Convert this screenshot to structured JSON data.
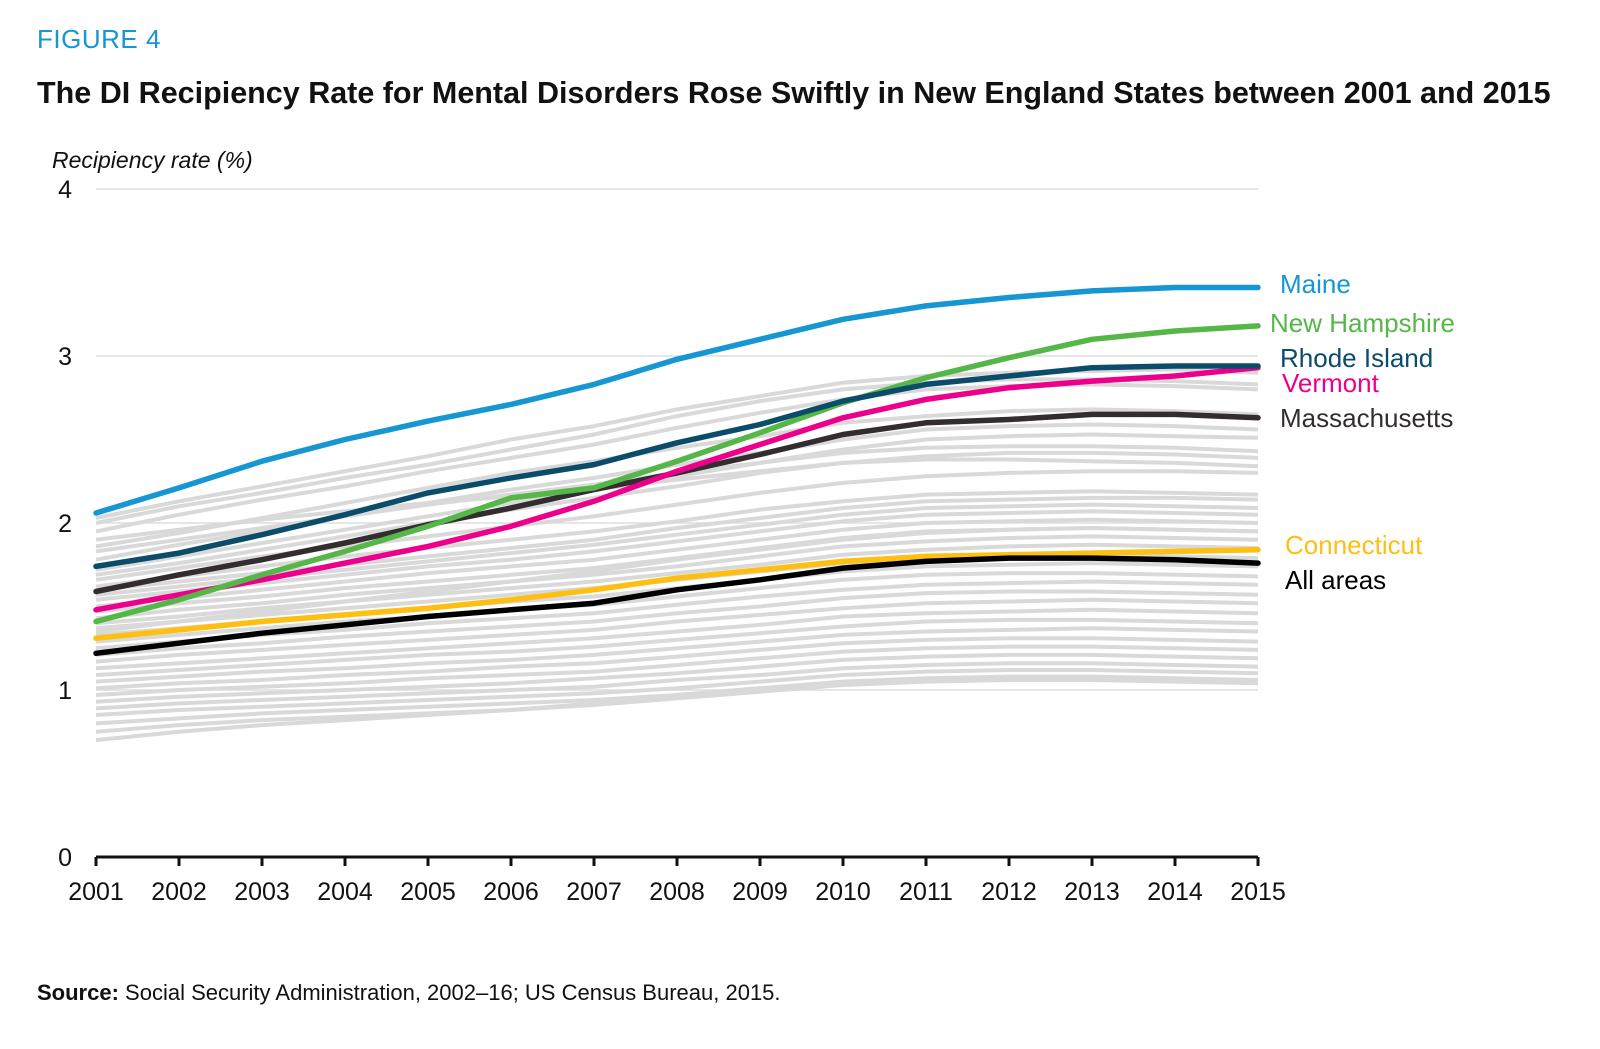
{
  "figure_label": "FIGURE 4",
  "title": "The DI Recipiency Rate for Mental Disorders Rose Swiftly in New England States between 2001 and 2015",
  "source": {
    "label": "Source:",
    "text": " Social Security Administration, 2002–16; US Census Bureau, 2015."
  },
  "colors": {
    "background_lines": "#d9d9d9",
    "gridline": "#dddddd",
    "axis": "#111111"
  },
  "chart_data": {
    "type": "line",
    "title": "The DI Recipiency Rate for Mental Disorders Rose Swiftly in New England States between 2001 and 2015",
    "ylabel": "Recipiency rate (%)",
    "xlabel": "",
    "x": [
      2001,
      2002,
      2003,
      2004,
      2005,
      2006,
      2007,
      2008,
      2009,
      2010,
      2011,
      2012,
      2013,
      2014,
      2015
    ],
    "ylim": [
      0,
      4
    ],
    "yticks": [
      0,
      1,
      2,
      3,
      4
    ],
    "grid": true,
    "series": [
      {
        "name": "Maine",
        "color": "#1696d2",
        "label_color": "#1696d2",
        "values": [
          2.06,
          2.21,
          2.37,
          2.5,
          2.61,
          2.71,
          2.83,
          2.98,
          3.1,
          3.22,
          3.3,
          3.35,
          3.39,
          3.41,
          3.41
        ]
      },
      {
        "name": "New Hampshire",
        "color": "#55b748",
        "label_color": "#55b748",
        "values": [
          1.41,
          1.54,
          1.69,
          1.83,
          1.98,
          2.15,
          2.21,
          2.37,
          2.54,
          2.72,
          2.87,
          2.99,
          3.1,
          3.15,
          3.18
        ]
      },
      {
        "name": "Rhode Island",
        "color": "#0a4c6a",
        "label_color": "#0a4c6a",
        "values": [
          1.74,
          1.82,
          1.93,
          2.05,
          2.18,
          2.27,
          2.35,
          2.48,
          2.59,
          2.73,
          2.83,
          2.88,
          2.93,
          2.94,
          2.94
        ]
      },
      {
        "name": "Vermont",
        "color": "#ec008b",
        "label_color": "#ec008b",
        "values": [
          1.48,
          1.57,
          1.66,
          1.76,
          1.86,
          1.98,
          2.13,
          2.31,
          2.47,
          2.63,
          2.74,
          2.81,
          2.85,
          2.88,
          2.93
        ]
      },
      {
        "name": "Massachusetts",
        "color": "#332d2f",
        "label_color": "#332d2f",
        "values": [
          1.59,
          1.69,
          1.78,
          1.88,
          1.99,
          2.09,
          2.2,
          2.3,
          2.41,
          2.53,
          2.6,
          2.62,
          2.65,
          2.65,
          2.63
        ]
      },
      {
        "name": "Connecticut",
        "color": "#fdbf11",
        "label_color": "#fdbf11",
        "values": [
          1.31,
          1.36,
          1.41,
          1.45,
          1.49,
          1.54,
          1.6,
          1.67,
          1.72,
          1.77,
          1.8,
          1.81,
          1.82,
          1.83,
          1.84
        ]
      },
      {
        "name": "All areas",
        "color": "#000000",
        "label_color": "#000000",
        "values": [
          1.22,
          1.28,
          1.34,
          1.39,
          1.44,
          1.48,
          1.52,
          1.6,
          1.66,
          1.73,
          1.77,
          1.79,
          1.79,
          1.78,
          1.76
        ]
      }
    ],
    "background_series_note": "Other areas shown as unlabeled gray lines",
    "background_series": [
      [
        2.03,
        2.13,
        2.22,
        2.31,
        2.4,
        2.5,
        2.58,
        2.68,
        2.76,
        2.84,
        2.88,
        2.9,
        2.91,
        2.92,
        2.9
      ],
      [
        2.0,
        2.1,
        2.18,
        2.27,
        2.35,
        2.44,
        2.53,
        2.64,
        2.73,
        2.8,
        2.84,
        2.86,
        2.86,
        2.85,
        2.83
      ],
      [
        1.95,
        2.05,
        2.14,
        2.22,
        2.31,
        2.39,
        2.47,
        2.57,
        2.66,
        2.74,
        2.8,
        2.82,
        2.83,
        2.82,
        2.8
      ],
      [
        1.86,
        1.94,
        2.03,
        2.12,
        2.21,
        2.3,
        2.37,
        2.45,
        2.52,
        2.6,
        2.64,
        2.67,
        2.68,
        2.67,
        2.65
      ],
      [
        1.78,
        1.87,
        1.95,
        2.04,
        2.12,
        2.2,
        2.27,
        2.35,
        2.42,
        2.5,
        2.56,
        2.58,
        2.59,
        2.58,
        2.56
      ],
      [
        1.72,
        1.8,
        1.88,
        1.96,
        2.04,
        2.12,
        2.2,
        2.28,
        2.36,
        2.44,
        2.5,
        2.52,
        2.53,
        2.52,
        2.51
      ],
      [
        1.66,
        1.73,
        1.8,
        1.86,
        1.92,
        1.98,
        2.04,
        2.11,
        2.18,
        2.24,
        2.28,
        2.3,
        2.31,
        2.31,
        2.3
      ],
      [
        1.62,
        1.68,
        1.74,
        1.8,
        1.85,
        1.9,
        1.95,
        2.01,
        2.08,
        2.13,
        2.17,
        2.18,
        2.19,
        2.18,
        2.17
      ],
      [
        1.6,
        1.65,
        1.7,
        1.75,
        1.8,
        1.85,
        1.9,
        1.97,
        2.03,
        2.09,
        2.13,
        2.14,
        2.15,
        2.15,
        2.14
      ],
      [
        1.57,
        1.62,
        1.67,
        1.72,
        1.77,
        1.82,
        1.87,
        1.93,
        1.99,
        2.05,
        2.09,
        2.1,
        2.11,
        2.1,
        2.09
      ],
      [
        1.54,
        1.59,
        1.64,
        1.69,
        1.74,
        1.78,
        1.83,
        1.89,
        1.95,
        2.01,
        2.05,
        2.06,
        2.07,
        2.06,
        2.05
      ],
      [
        1.5,
        1.55,
        1.6,
        1.65,
        1.7,
        1.74,
        1.78,
        1.84,
        1.9,
        1.96,
        2.0,
        2.01,
        2.02,
        2.01,
        2.0
      ],
      [
        1.47,
        1.52,
        1.56,
        1.61,
        1.65,
        1.69,
        1.73,
        1.79,
        1.85,
        1.91,
        1.95,
        1.96,
        1.97,
        1.96,
        1.95
      ],
      [
        1.43,
        1.48,
        1.52,
        1.57,
        1.61,
        1.65,
        1.69,
        1.74,
        1.8,
        1.86,
        1.89,
        1.91,
        1.92,
        1.91,
        1.9
      ],
      [
        1.4,
        1.44,
        1.49,
        1.53,
        1.57,
        1.61,
        1.65,
        1.7,
        1.75,
        1.81,
        1.84,
        1.86,
        1.87,
        1.86,
        1.85
      ],
      [
        1.37,
        1.41,
        1.45,
        1.49,
        1.53,
        1.57,
        1.61,
        1.66,
        1.71,
        1.76,
        1.79,
        1.81,
        1.81,
        1.8,
        1.79
      ],
      [
        1.33,
        1.37,
        1.41,
        1.45,
        1.49,
        1.53,
        1.56,
        1.61,
        1.66,
        1.71,
        1.74,
        1.75,
        1.76,
        1.75,
        1.74
      ],
      [
        1.29,
        1.33,
        1.37,
        1.41,
        1.44,
        1.48,
        1.51,
        1.56,
        1.61,
        1.66,
        1.69,
        1.7,
        1.7,
        1.69,
        1.68
      ],
      [
        1.25,
        1.29,
        1.33,
        1.36,
        1.4,
        1.43,
        1.46,
        1.51,
        1.56,
        1.6,
        1.63,
        1.64,
        1.65,
        1.64,
        1.63
      ],
      [
        1.21,
        1.25,
        1.28,
        1.32,
        1.35,
        1.38,
        1.41,
        1.46,
        1.5,
        1.55,
        1.58,
        1.59,
        1.59,
        1.58,
        1.57
      ],
      [
        1.17,
        1.21,
        1.24,
        1.27,
        1.3,
        1.33,
        1.36,
        1.41,
        1.45,
        1.49,
        1.52,
        1.53,
        1.54,
        1.53,
        1.52
      ],
      [
        1.13,
        1.16,
        1.19,
        1.22,
        1.25,
        1.28,
        1.31,
        1.35,
        1.39,
        1.44,
        1.46,
        1.47,
        1.48,
        1.47,
        1.46
      ],
      [
        1.09,
        1.12,
        1.15,
        1.18,
        1.21,
        1.23,
        1.26,
        1.3,
        1.34,
        1.38,
        1.41,
        1.42,
        1.42,
        1.41,
        1.4
      ],
      [
        1.05,
        1.08,
        1.11,
        1.13,
        1.16,
        1.18,
        1.21,
        1.25,
        1.29,
        1.33,
        1.35,
        1.36,
        1.37,
        1.36,
        1.35
      ],
      [
        1.01,
        1.04,
        1.06,
        1.09,
        1.11,
        1.14,
        1.16,
        1.2,
        1.24,
        1.28,
        1.3,
        1.31,
        1.31,
        1.3,
        1.29
      ],
      [
        0.97,
        1.0,
        1.02,
        1.04,
        1.07,
        1.09,
        1.11,
        1.15,
        1.19,
        1.23,
        1.25,
        1.26,
        1.26,
        1.25,
        1.24
      ],
      [
        0.93,
        0.96,
        0.98,
        1.0,
        1.02,
        1.04,
        1.07,
        1.1,
        1.14,
        1.18,
        1.2,
        1.21,
        1.21,
        1.2,
        1.19
      ],
      [
        0.89,
        0.92,
        0.94,
        0.96,
        0.98,
        1.0,
        1.02,
        1.06,
        1.09,
        1.13,
        1.15,
        1.16,
        1.16,
        1.15,
        1.14
      ],
      [
        0.85,
        0.88,
        0.9,
        0.92,
        0.94,
        0.96,
        0.98,
        1.01,
        1.05,
        1.09,
        1.11,
        1.12,
        1.12,
        1.11,
        1.1
      ],
      [
        0.8,
        0.83,
        0.86,
        0.88,
        0.9,
        0.92,
        0.94,
        0.97,
        1.01,
        1.05,
        1.07,
        1.08,
        1.08,
        1.07,
        1.06
      ],
      [
        0.75,
        0.79,
        0.82,
        0.84,
        0.86,
        0.88,
        0.91,
        0.95,
        0.99,
        1.03,
        1.05,
        1.06,
        1.06,
        1.05,
        1.04
      ],
      [
        0.7,
        0.75,
        0.79,
        0.82,
        0.85,
        0.88,
        0.92,
        0.97,
        1.01,
        1.04,
        1.06,
        1.07,
        1.07,
        1.06,
        1.05
      ],
      [
        1.9,
        1.96,
        2.02,
        2.07,
        2.12,
        2.16,
        2.2,
        2.26,
        2.31,
        2.36,
        2.38,
        2.38,
        2.37,
        2.36,
        2.34
      ],
      [
        1.83,
        1.9,
        1.97,
        2.04,
        2.11,
        2.17,
        2.23,
        2.3,
        2.36,
        2.42,
        2.45,
        2.46,
        2.46,
        2.45,
        2.43
      ],
      [
        1.69,
        1.76,
        1.84,
        1.92,
        2.0,
        2.08,
        2.15,
        2.22,
        2.3,
        2.36,
        2.4,
        2.42,
        2.42,
        2.41,
        2.39
      ],
      [
        1.35,
        1.41,
        1.47,
        1.53,
        1.59,
        1.65,
        1.71,
        1.78,
        1.84,
        1.9,
        1.94,
        1.96,
        1.97,
        1.96,
        1.95
      ]
    ]
  }
}
